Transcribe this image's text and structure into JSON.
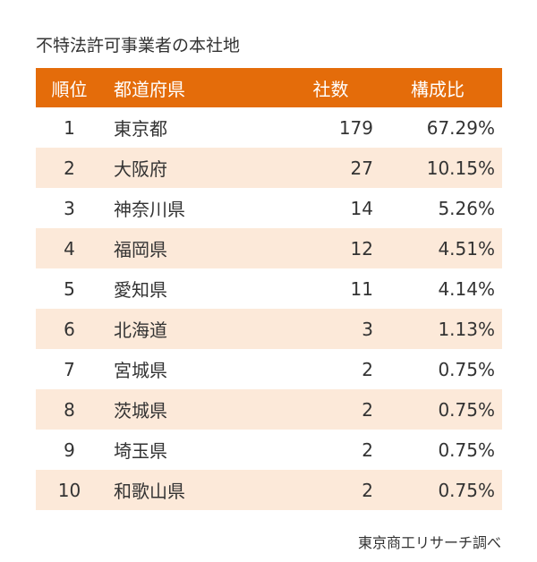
{
  "title": "不特法許可事業者の本社地",
  "headers": {
    "rank": "順位",
    "prefecture": "都道府県",
    "count": "社数",
    "ratio": "構成比"
  },
  "rows": [
    {
      "rank": "1",
      "prefecture": "東京都",
      "count": "179",
      "ratio": "67.29%"
    },
    {
      "rank": "2",
      "prefecture": "大阪府",
      "count": "27",
      "ratio": "10.15%"
    },
    {
      "rank": "3",
      "prefecture": "神奈川県",
      "count": "14",
      "ratio": "5.26%"
    },
    {
      "rank": "4",
      "prefecture": "福岡県",
      "count": "12",
      "ratio": "4.51%"
    },
    {
      "rank": "5",
      "prefecture": "愛知県",
      "count": "11",
      "ratio": "4.14%"
    },
    {
      "rank": "6",
      "prefecture": "北海道",
      "count": "3",
      "ratio": "1.13%"
    },
    {
      "rank": "7",
      "prefecture": "宮城県",
      "count": "2",
      "ratio": "0.75%"
    },
    {
      "rank": "8",
      "prefecture": "茨城県",
      "count": "2",
      "ratio": "0.75%"
    },
    {
      "rank": "9",
      "prefecture": "埼玉県",
      "count": "2",
      "ratio": "0.75%"
    },
    {
      "rank": "10",
      "prefecture": "和歌山県",
      "count": "2",
      "ratio": "0.75%"
    }
  ],
  "source": "東京商工リサーチ調べ",
  "colors": {
    "header": "#e46c0a",
    "stripe": "#fce9d9"
  }
}
